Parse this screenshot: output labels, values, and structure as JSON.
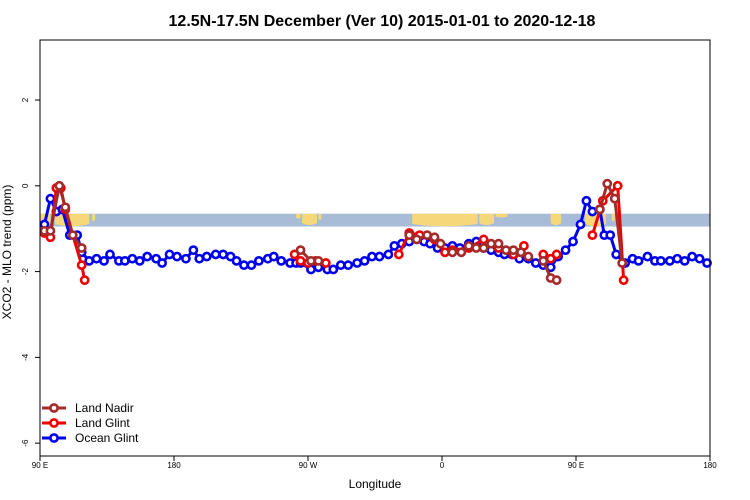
{
  "chart_data": {
    "type": "line",
    "title": "12.5N-17.5N December (Ver 10)   2015-01-01 to 2020-12-18",
    "xlabel": "Longitude",
    "ylabel": "XCO2 - MLO trend (ppm)",
    "xlim": [
      90,
      540
    ],
    "ylim": [
      -6.3,
      3.4
    ],
    "x_ticks": [
      {
        "value": 90,
        "label": "90 E"
      },
      {
        "value": 180,
        "label": "180"
      },
      {
        "value": 270,
        "label": "90 W"
      },
      {
        "value": 360,
        "label": "0"
      },
      {
        "value": 450,
        "label": "90 E"
      },
      {
        "value": 540,
        "label": "180"
      }
    ],
    "y_ticks": [
      {
        "value": 2,
        "label": "2"
      },
      {
        "value": 0,
        "label": "0"
      },
      {
        "value": -2,
        "label": "-2"
      },
      {
        "value": -4,
        "label": "-4"
      },
      {
        "value": -6,
        "label": "-6"
      }
    ],
    "land_band": {
      "y_range": [
        -0.95,
        -0.65
      ],
      "ocean_color": "#a8bcd8",
      "land_color": "#f5d87a",
      "land_segments": [
        {
          "x0": 90,
          "x1": 97,
          "peak": 1.0
        },
        {
          "x0": 100,
          "x1": 123,
          "peak": 1.0
        },
        {
          "x0": 125,
          "x1": 127,
          "peak": 0.6
        },
        {
          "x0": 262,
          "x1": 265,
          "peak": 0.4
        },
        {
          "x0": 266,
          "x1": 276,
          "peak": 0.9
        },
        {
          "x0": 277,
          "x1": 279,
          "peak": 0.5
        },
        {
          "x0": 340,
          "x1": 384,
          "peak": 1.0
        },
        {
          "x0": 385,
          "x1": 395,
          "peak": 0.9
        },
        {
          "x0": 396,
          "x1": 404,
          "peak": 0.3
        },
        {
          "x0": 433,
          "x1": 440,
          "peak": 0.9
        },
        {
          "x0": 456,
          "x1": 470,
          "peak": 1.0
        },
        {
          "x0": 474,
          "x1": 476,
          "peak": 0.6
        }
      ]
    },
    "series": [
      {
        "name": "Ocean Glint",
        "color": "#0000ee",
        "segments": [
          {
            "x": [
              93,
              97,
              101,
              105,
              110,
              115,
              118,
              123,
              128,
              133,
              137,
              143,
              147,
              152,
              157,
              162,
              168,
              172,
              177,
              182,
              188,
              193,
              197,
              202,
              208,
              213,
              218,
              222,
              227,
              232,
              237,
              243,
              247,
              252,
              258,
              262,
              265,
              272,
              277,
              283,
              287,
              292,
              297,
              303,
              308,
              313,
              318,
              324,
              328,
              333,
              338,
              342,
              348,
              352,
              357,
              362,
              367,
              372,
              378,
              383,
              388,
              393,
              398,
              402,
              407,
              412,
              418,
              423,
              428,
              433,
              438,
              443,
              448,
              453,
              457,
              461,
              466,
              469,
              473,
              477,
              483,
              488,
              492,
              498,
              503,
              507,
              513,
              518,
              523,
              528,
              533,
              538
            ],
            "y": [
              -0.9,
              -0.3,
              -0.6,
              -0.55,
              -1.15,
              -1.15,
              -1.55,
              -1.75,
              -1.7,
              -1.75,
              -1.6,
              -1.75,
              -1.75,
              -1.7,
              -1.75,
              -1.65,
              -1.7,
              -1.8,
              -1.6,
              -1.65,
              -1.7,
              -1.5,
              -1.7,
              -1.65,
              -1.6,
              -1.6,
              -1.65,
              -1.75,
              -1.85,
              -1.85,
              -1.75,
              -1.7,
              -1.65,
              -1.75,
              -1.8,
              -1.8,
              -1.8,
              -1.95,
              -1.9,
              -1.95,
              -1.95,
              -1.85,
              -1.85,
              -1.8,
              -1.75,
              -1.65,
              -1.65,
              -1.6,
              -1.4,
              -1.35,
              -1.3,
              -1.2,
              -1.3,
              -1.35,
              -1.45,
              -1.45,
              -1.4,
              -1.45,
              -1.35,
              -1.3,
              -1.45,
              -1.5,
              -1.55,
              -1.6,
              -1.6,
              -1.7,
              -1.7,
              -1.8,
              -1.85,
              -1.9,
              -1.65,
              -1.5,
              -1.3,
              -0.9,
              -0.35,
              -0.6,
              -0.55,
              -1.15,
              -1.15,
              -1.6,
              -1.8,
              -1.7,
              -1.75,
              -1.65,
              -1.75,
              -1.75,
              -1.75,
              -1.7,
              -1.75,
              -1.65,
              -1.7,
              -1.8
            ]
          }
        ]
      },
      {
        "name": "Land Glint",
        "color": "#ee0000",
        "segments": [
          {
            "x": [
              93,
              97,
              101,
              104,
              107,
              118,
              120
            ],
            "y": [
              -1.1,
              -1.2,
              -0.05,
              -0.05,
              -0.55,
              -1.85,
              -2.2
            ]
          },
          {
            "x": [
              261,
              265,
              270,
              275,
              282
            ],
            "y": [
              -1.6,
              -1.75,
              -1.8,
              -1.75,
              -1.8
            ]
          },
          {
            "x": [
              331,
              338,
              345,
              355,
              362
            ],
            "y": [
              -1.6,
              -1.1,
              -1.15,
              -1.25,
              -1.55
            ]
          },
          {
            "x": [
              367,
              378,
              388,
              398,
              408,
              415
            ],
            "y": [
              -1.5,
              -1.45,
              -1.25,
              -1.45,
              -1.6,
              -1.4
            ]
          },
          {
            "x": [
              428,
              433,
              437
            ],
            "y": [
              -1.6,
              -1.7,
              -1.6
            ]
          },
          {
            "x": [
              461,
              468,
              478,
              482
            ],
            "y": [
              -1.15,
              -0.35,
              0.0,
              -2.2
            ]
          }
        ]
      },
      {
        "name": "Land Nadir",
        "color": "#a52a2a",
        "segments": [
          {
            "x": [
              93,
              97,
              103,
              107,
              112,
              118
            ],
            "y": [
              -1.05,
              -1.05,
              0.0,
              -0.5,
              -1.15,
              -1.45
            ]
          },
          {
            "x": [
              265,
              272,
              277
            ],
            "y": [
              -1.5,
              -1.75,
              -1.75
            ]
          },
          {
            "x": [
              338,
              343,
              350,
              355,
              359
            ],
            "y": [
              -1.15,
              -1.25,
              -1.15,
              -1.2,
              -1.35
            ]
          },
          {
            "x": [
              367,
              373,
              378,
              383,
              388,
              393,
              398,
              403
            ],
            "y": [
              -1.55,
              -1.55,
              -1.4,
              -1.45,
              -1.45,
              -1.35,
              -1.35,
              -1.5
            ]
          },
          {
            "x": [
              408,
              413,
              418
            ],
            "y": [
              -1.5,
              -1.55,
              -1.65
            ]
          },
          {
            "x": [
              428,
              433,
              437
            ],
            "y": [
              -1.75,
              -2.15,
              -2.2
            ]
          },
          {
            "x": [
              466,
              471,
              476,
              481
            ],
            "y": [
              -0.55,
              0.05,
              -0.3,
              -1.8
            ]
          }
        ]
      }
    ],
    "legend": {
      "position": "bottom-left",
      "entries": [
        {
          "label": "Land Nadir",
          "color": "#a52a2a"
        },
        {
          "label": "Land Glint",
          "color": "#ee0000"
        },
        {
          "label": "Ocean Glint",
          "color": "#0000ee"
        }
      ]
    }
  }
}
